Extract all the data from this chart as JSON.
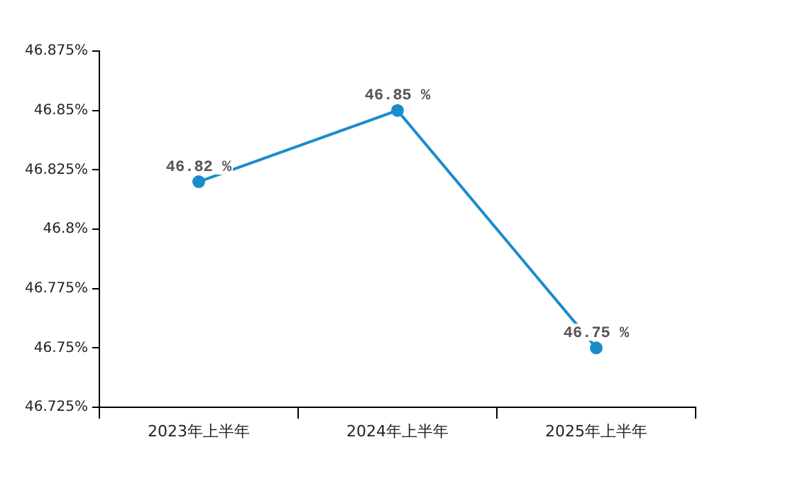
{
  "chart_data": {
    "type": "line",
    "categories": [
      "2023年上半年",
      "2024年上半年",
      "2025年上半年"
    ],
    "series": [
      {
        "color": "#1a8ccc",
        "values": [
          46.82,
          46.85,
          46.75
        ],
        "value_labels": [
          "46.82 %",
          "46.85 %",
          "46.75 %"
        ]
      }
    ],
    "ylim": [
      46.725,
      46.875
    ],
    "yticks": [
      {
        "value": 46.725,
        "label": "46.725%"
      },
      {
        "value": 46.75,
        "label": "46.75%"
      },
      {
        "value": 46.775,
        "label": "46.775%"
      },
      {
        "value": 46.8,
        "label": "46.8%"
      },
      {
        "value": 46.825,
        "label": "46.825%"
      },
      {
        "value": 46.85,
        "label": "46.85%"
      },
      {
        "value": 46.875,
        "label": "46.875%"
      }
    ],
    "grid": false,
    "legend": false,
    "marker": "circle",
    "line_style": "solid"
  }
}
